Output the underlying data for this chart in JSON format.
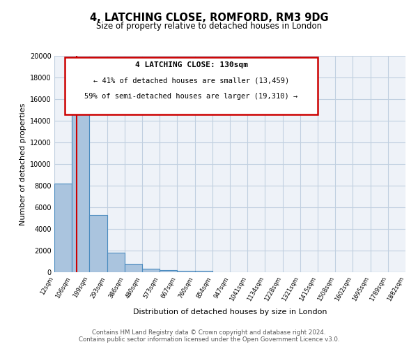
{
  "title": "4, LATCHING CLOSE, ROMFORD, RM3 9DG",
  "subtitle": "Size of property relative to detached houses in London",
  "xlabel": "Distribution of detached houses by size in London",
  "ylabel": "Number of detached properties",
  "bar_heights": [
    8200,
    16500,
    5300,
    1800,
    750,
    300,
    200,
    150,
    100,
    0,
    0,
    0,
    0,
    0,
    0,
    0,
    0,
    0,
    0,
    0
  ],
  "bin_labels": [
    "12sqm",
    "106sqm",
    "199sqm",
    "293sqm",
    "386sqm",
    "480sqm",
    "573sqm",
    "667sqm",
    "760sqm",
    "854sqm",
    "947sqm",
    "1041sqm",
    "1134sqm",
    "1228sqm",
    "1321sqm",
    "1415sqm",
    "1508sqm",
    "1602sqm",
    "1695sqm",
    "1789sqm",
    "1882sqm"
  ],
  "bar_color": "#aac4de",
  "bar_edge_color": "#4a8bbf",
  "background_color": "#eef2f8",
  "grid_color": "#c0cfe0",
  "annotation_title": "4 LATCHING CLOSE: 130sqm",
  "annotation_line1": "← 41% of detached houses are smaller (13,459)",
  "annotation_line2": "59% of semi-detached houses are larger (19,310) →",
  "annotation_box_color": "#ffffff",
  "annotation_border_color": "#cc0000",
  "vline_color": "#cc0000",
  "vline_x": 1.27,
  "ylim": [
    0,
    20000
  ],
  "yticks": [
    0,
    2000,
    4000,
    6000,
    8000,
    10000,
    12000,
    14000,
    16000,
    18000,
    20000
  ],
  "footer_line1": "Contains HM Land Registry data © Crown copyright and database right 2024.",
  "footer_line2": "Contains public sector information licensed under the Open Government Licence v3.0.",
  "n_bins": 20
}
